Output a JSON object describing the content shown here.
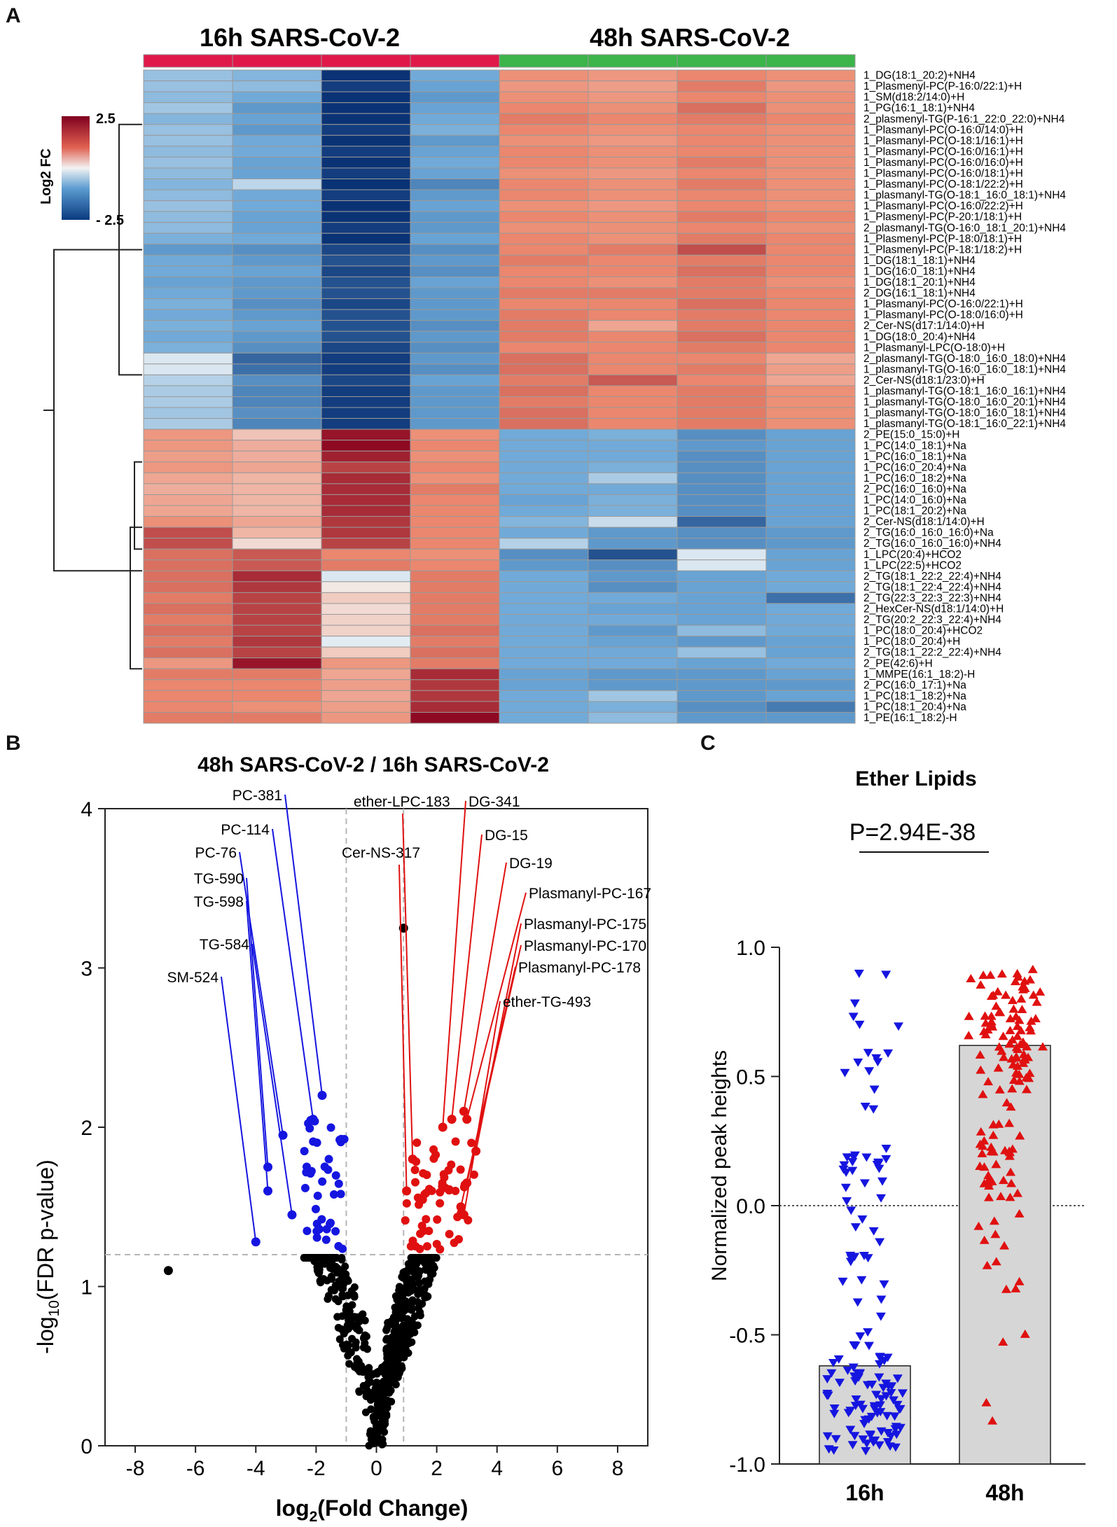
{
  "panels": {
    "a": "A",
    "b": "B",
    "c": "C"
  },
  "heatmap": {
    "group_left": "16h SARS-CoV-2",
    "group_right": "48h SARS-CoV-2",
    "group_left_color": "#e0184a",
    "group_right_color": "#3cb44a",
    "legend_title": "Log2 FC",
    "legend_max": "2.5",
    "legend_min": "- 2.5",
    "rows": [
      "1_DG(18:1_20:2)+NH4",
      "1_Plasmenyl-PC(P-16:0/22:1)+H",
      "1_SM(d18:2/14:0)+H",
      "1_PG(16:1_18:1)+NH4",
      "2_plasmenyl-TG(P-16:1_22:0_22:0)+NH4",
      "1_Plasmanyl-PC(O-16:0/14:0)+H",
      "1_Plasmanyl-PC(O-18:1/16:1)+H",
      "1_Plasmanyl-PC(O-16:0/16:1)+H",
      "1_Plasmanyl-PC(O-16:0/16:0)+H",
      "1_Plasmanyl-PC(O-16:0/18:1)+H",
      "1_Plasmanyl-PC(O-18:1/22:2)+H",
      "1_plasmanyl-TG(O-18:1_16:0_18:1)+NH4",
      "1_Plasmanyl-PC(O-16:0/22:2)+H",
      "1_Plasmenyl-PC(P-20:1/18:1)+H",
      "2_plasmanyl-TG(O-16:0_18:1_20:1)+NH4",
      "1_Plasmenyl-PC(P-18:0/18:1)+H",
      "1_Plasmenyl-PC(P-18:1/18:2)+H",
      "1_DG(18:1_18:1)+NH4",
      "1_DG(16:0_18:1)+NH4",
      "1_DG(18:1_20:1)+NH4",
      "2_DG(16:1_18:1)+NH4",
      "1_Plasmanyl-PC(O-16:0/22:1)+H",
      "1_Plasmanyl-PC(O-18:0/16:0)+H",
      "2_Cer-NS(d17:1/14:0)+H",
      "1_DG(18:0_20:4)+NH4",
      "1_Plasmanyl-LPC(O-18:0)+H",
      "2_plasmanyl-TG(O-18:0_16:0_18:0)+NH4",
      "1_plasmanyl-TG(O-16:0_16:0_18:1)+NH4",
      "2_Cer-NS(d18:1/23:0)+H",
      "1_plasmanyl-TG(O-18:1_16:0_16:1)+NH4",
      "1_plasmanyl-TG(O-18:0_16:0_20:1)+NH4",
      "1_plasmanyl-TG(O-18:0_16:0_18:1)+NH4",
      "1_plasmanyl-TG(O-18:1_16:0_22:1)+NH4",
      "2_PE(15:0_15:0)+H",
      "1_PC(14:0_18:1)+Na",
      "1_PC(16:0_18:1)+Na",
      "1_PC(16:0_20:4)+Na",
      "1_PC(16:0_18:2)+Na",
      "2_PC(16:0_16:0)+Na",
      "1_PC(14:0_16:0)+Na",
      "1_PC(18:1_20:2)+Na",
      "2_Cer-NS(d18:1/14:0)+H",
      "2_TG(16:0_16:0_16:0)+Na",
      "2_TG(16:0_16:0_16:0)+NH4",
      "1_LPC(20:4)+HCO2",
      "1_LPC(22:5)+HCO2",
      "2_TG(18:1_22:2_22:4)+NH4",
      "2_TG(18:1_22:4_22:4)+NH4",
      "2_TG(22:3_22:3_22:3)+NH4",
      "2_HexCer-NS(d18:1/14:0)+H",
      "2_TG(20:2_22:3_22:4)+NH4",
      "1_PC(18:0_20:4)+HCO2",
      "1_PC(18:0_20:4)+H",
      "2_TG(18:1_22:2_22:4)+NH4",
      "2_PE(42:6)+H",
      "1_MMPE(16:1_18:2)-H",
      "2_PC(16:0_17:1)+Na",
      "1_PC(18:1_18:2)+Na",
      "1_PC(18:1_20:4)+Na",
      "1_PE(16:1_18:2)-H"
    ],
    "values": [
      [
        -0.9,
        -1.1,
        -2.5,
        -1.3,
        1.3,
        1.2,
        1.4,
        1.3
      ],
      [
        -0.9,
        -1.0,
        -2.4,
        -1.4,
        1.2,
        1.1,
        1.5,
        1.2
      ],
      [
        -1.0,
        -1.3,
        -2.5,
        -1.5,
        1.3,
        1.2,
        1.4,
        1.3
      ],
      [
        -0.8,
        -1.5,
        -2.5,
        -1.4,
        1.4,
        1.3,
        1.6,
        1.3
      ],
      [
        -1.1,
        -1.4,
        -2.5,
        -1.3,
        1.5,
        1.4,
        1.5,
        1.4
      ],
      [
        -0.9,
        -1.5,
        -2.4,
        -1.2,
        1.4,
        1.3,
        1.4,
        1.3
      ],
      [
        -0.9,
        -1.3,
        -2.5,
        -1.5,
        1.3,
        1.2,
        1.4,
        1.3
      ],
      [
        -1.0,
        -1.3,
        -2.4,
        -1.4,
        1.4,
        1.3,
        1.4,
        1.3
      ],
      [
        -0.9,
        -1.4,
        -2.5,
        -1.3,
        1.4,
        1.3,
        1.5,
        1.3
      ],
      [
        -1.0,
        -1.4,
        -2.4,
        -1.4,
        1.3,
        1.2,
        1.4,
        1.3
      ],
      [
        -1.1,
        -0.5,
        -2.5,
        -1.7,
        1.4,
        1.3,
        1.5,
        1.3
      ],
      [
        -1.0,
        -1.3,
        -2.4,
        -1.5,
        1.4,
        1.3,
        1.4,
        1.3
      ],
      [
        -0.9,
        -1.3,
        -2.5,
        -1.4,
        1.3,
        1.2,
        1.4,
        1.3
      ],
      [
        -1.0,
        -1.4,
        -2.5,
        -1.5,
        1.4,
        1.3,
        1.5,
        1.4
      ],
      [
        -1.0,
        -1.4,
        -2.4,
        -1.5,
        1.3,
        1.3,
        1.4,
        1.3
      ],
      [
        -1.2,
        -1.3,
        -2.5,
        -1.4,
        1.4,
        1.3,
        1.5,
        1.4
      ],
      [
        -1.5,
        -1.6,
        -2.3,
        -1.6,
        1.4,
        1.5,
        1.9,
        1.4
      ],
      [
        -1.3,
        -1.5,
        -2.2,
        -1.5,
        1.5,
        1.4,
        1.5,
        1.4
      ],
      [
        -1.3,
        -1.4,
        -2.3,
        -1.6,
        1.4,
        1.4,
        1.6,
        1.4
      ],
      [
        -1.4,
        -1.5,
        -2.2,
        -1.4,
        1.4,
        1.3,
        1.5,
        1.3
      ],
      [
        -1.3,
        -1.5,
        -2.2,
        -1.5,
        1.5,
        1.5,
        1.5,
        1.4
      ],
      [
        -1.2,
        -1.6,
        -2.3,
        -1.5,
        1.4,
        1.4,
        1.6,
        1.4
      ],
      [
        -1.3,
        -1.5,
        -2.2,
        -1.5,
        1.5,
        1.4,
        1.5,
        1.4
      ],
      [
        -1.2,
        -1.4,
        -2.2,
        -1.6,
        1.5,
        1.0,
        1.5,
        1.4
      ],
      [
        -1.3,
        -1.5,
        -2.2,
        -1.5,
        1.5,
        1.4,
        1.6,
        1.4
      ],
      [
        -1.2,
        -1.6,
        -2.3,
        -1.6,
        1.4,
        1.4,
        1.5,
        1.4
      ],
      [
        -0.2,
        -2.0,
        -2.4,
        -1.5,
        1.6,
        1.4,
        1.4,
        1.0
      ],
      [
        -0.2,
        -1.9,
        -2.4,
        -1.6,
        1.6,
        1.4,
        1.5,
        1.1
      ],
      [
        -0.6,
        -1.6,
        -2.3,
        -1.4,
        1.5,
        1.8,
        1.4,
        1.0
      ],
      [
        -0.7,
        -1.7,
        -2.4,
        -1.5,
        1.6,
        1.4,
        1.5,
        1.3
      ],
      [
        -0.7,
        -1.7,
        -2.4,
        -1.5,
        1.5,
        1.4,
        1.5,
        1.3
      ],
      [
        -0.8,
        -1.6,
        -2.4,
        -1.5,
        1.6,
        1.4,
        1.5,
        1.3
      ],
      [
        -0.7,
        -1.7,
        -2.4,
        -1.5,
        1.6,
        1.4,
        1.5,
        1.3
      ],
      [
        1.2,
        0.6,
        2.4,
        1.3,
        -1.3,
        -1.2,
        -1.6,
        -1.4
      ],
      [
        1.2,
        0.9,
        2.5,
        1.4,
        -1.3,
        -1.3,
        -1.5,
        -1.4
      ],
      [
        1.1,
        0.9,
        2.3,
        1.3,
        -1.3,
        -1.3,
        -1.6,
        -1.4
      ],
      [
        1.2,
        1.0,
        2.0,
        1.4,
        -1.3,
        -1.2,
        -1.6,
        -1.4
      ],
      [
        1.0,
        0.8,
        2.2,
        1.3,
        -1.3,
        -0.7,
        -1.6,
        -1.4
      ],
      [
        0.9,
        0.8,
        2.2,
        1.5,
        -1.3,
        -1.3,
        -1.6,
        -1.4
      ],
      [
        1.0,
        0.8,
        2.2,
        1.4,
        -1.4,
        -1.2,
        -1.6,
        -1.4
      ],
      [
        1.0,
        0.8,
        2.2,
        1.4,
        -1.3,
        -1.2,
        -1.6,
        -1.4
      ],
      [
        1.3,
        1.0,
        2.1,
        1.4,
        -1.1,
        -0.4,
        -2.0,
        -1.4
      ],
      [
        1.9,
        0.8,
        2.1,
        1.4,
        -1.3,
        -1.5,
        -1.6,
        -1.5
      ],
      [
        1.9,
        0.3,
        2.0,
        1.4,
        -0.6,
        -1.5,
        -1.6,
        -1.5
      ],
      [
        1.6,
        1.8,
        1.4,
        1.3,
        -1.6,
        -2.2,
        -0.2,
        -1.4
      ],
      [
        1.6,
        1.8,
        1.5,
        1.4,
        -1.5,
        -1.6,
        -0.2,
        -1.4
      ],
      [
        1.6,
        2.2,
        -0.2,
        1.5,
        -1.3,
        -1.5,
        -1.4,
        -1.3
      ],
      [
        1.6,
        2.1,
        0.1,
        1.5,
        -1.3,
        -1.6,
        -1.4,
        -1.3
      ],
      [
        1.5,
        2.0,
        0.5,
        1.5,
        -1.3,
        -1.3,
        -1.4,
        -1.9
      ],
      [
        1.6,
        2.0,
        0.3,
        1.5,
        -1.3,
        -1.4,
        -1.4,
        -1.3
      ],
      [
        1.5,
        2.0,
        0.4,
        1.5,
        -1.3,
        -1.3,
        -1.4,
        -1.3
      ],
      [
        1.6,
        2.0,
        0.4,
        1.6,
        -1.3,
        -1.5,
        -1.0,
        -1.3
      ],
      [
        1.5,
        2.1,
        -0.1,
        1.5,
        -1.3,
        -1.4,
        -1.5,
        -1.4
      ],
      [
        1.6,
        2.0,
        0.5,
        1.6,
        -1.3,
        -1.3,
        -0.9,
        -1.4
      ],
      [
        1.2,
        2.4,
        1.2,
        1.5,
        -1.3,
        -1.3,
        -1.4,
        -1.3
      ],
      [
        1.5,
        1.5,
        1.0,
        2.2,
        -1.4,
        -1.5,
        -1.5,
        -1.4
      ],
      [
        1.4,
        1.4,
        1.1,
        2.1,
        -1.4,
        -1.5,
        -1.5,
        -1.5
      ],
      [
        1.4,
        1.4,
        1.0,
        2.1,
        -1.3,
        -0.8,
        -1.5,
        -1.4
      ],
      [
        1.4,
        1.3,
        1.1,
        2.2,
        -1.3,
        -1.2,
        -1.6,
        -1.8
      ],
      [
        1.5,
        1.5,
        1.2,
        2.5,
        -1.3,
        -1.0,
        -1.5,
        -1.5
      ]
    ]
  },
  "volcano": {
    "title": "48h SARS-CoV-2 / 16h SARS-CoV-2",
    "xlabel_main": "log",
    "xlabel_sub": "2",
    "xlabel_rest": "(Fold Change)",
    "ylabel_main": "-log",
    "ylabel_sub": "10",
    "ylabel_rest": "(FDR p-value)",
    "xticks": [
      "-8",
      "-6",
      "-4",
      "-2",
      "0",
      "2",
      "4",
      "6",
      "8"
    ],
    "yticks": [
      "0",
      "1",
      "2",
      "3",
      "4"
    ],
    "labels_down": [
      "PC-381",
      "PC-114",
      "PC-76",
      "TG-590",
      "TG-598",
      "TG-584",
      "SM-524"
    ],
    "labels_up": [
      "ether-LPC-183",
      "Cer-NS-317",
      "DG-341",
      "DG-15",
      "DG-19",
      "Plasmanyl-PC-167",
      "Plasmanyl-PC-175",
      "Plasmanyl-PC-170",
      "Plasmanyl-PC-178",
      "ether-TG-493"
    ],
    "down_color": "#1515e0",
    "up_color": "#e01010"
  },
  "chart_data": [
    {
      "type": "heatmap",
      "title": "",
      "columns_groups": [
        "16h SARS-CoV-2",
        "48h SARS-CoV-2"
      ],
      "color_range": [
        -2.5,
        2.5
      ],
      "note": "rows and values listed under heatmap"
    },
    {
      "type": "scatter",
      "title": "48h SARS-CoV-2 / 16h SARS-CoV-2",
      "xlabel": "log2(Fold Change)",
      "ylabel": "-log10(FDR p-value)",
      "xlim": [
        -9,
        9
      ],
      "ylim": [
        0,
        4
      ],
      "thresholds": {
        "x": [
          -1,
          0.9
        ],
        "y": 1.2
      },
      "highlighted_points": [
        {
          "label": "PC-381",
          "x": -1.8,
          "y": 2.2
        },
        {
          "label": "PC-114",
          "x": -2.1,
          "y": 2.05
        },
        {
          "label": "PC-76",
          "x": -3.1,
          "y": 1.95
        },
        {
          "label": "TG-590",
          "x": -3.6,
          "y": 1.75
        },
        {
          "label": "TG-598",
          "x": -3.6,
          "y": 1.6
        },
        {
          "label": "TG-584",
          "x": -2.8,
          "y": 1.45
        },
        {
          "label": "SM-524",
          "x": -4.0,
          "y": 1.28
        },
        {
          "label": "ether-LPC-183",
          "x": 1.2,
          "y": 1.8
        },
        {
          "label": "Cer-NS-317",
          "x": 1.0,
          "y": 1.6
        },
        {
          "label": "DG-341",
          "x": 2.2,
          "y": 2.0
        },
        {
          "label": "DG-15",
          "x": 2.5,
          "y": 2.05
        },
        {
          "label": "DG-19",
          "x": 2.9,
          "y": 2.1
        },
        {
          "label": "Plasmanyl-PC-167",
          "x": 3.0,
          "y": 2.05
        },
        {
          "label": "Plasmanyl-PC-175",
          "x": 3.3,
          "y": 1.85
        },
        {
          "label": "Plasmanyl-PC-170",
          "x": 3.0,
          "y": 1.65
        },
        {
          "label": "Plasmanyl-PC-178",
          "x": 2.8,
          "y": 1.5
        },
        {
          "label": "ether-TG-493",
          "x": 2.9,
          "y": 1.45
        },
        {
          "label": "",
          "x": -6.9,
          "y": 1.1
        },
        {
          "label": "",
          "x": 0.9,
          "y": 3.25
        }
      ]
    },
    {
      "type": "scatter",
      "title": "Ether Lipids",
      "categories": [
        "16h",
        "48h"
      ],
      "ylabel": "Normalized peak heights",
      "ylim": [
        -1.0,
        1.0
      ],
      "yticks": [
        "1.0",
        "0.5",
        "0.0",
        "-0.5",
        "-1.0"
      ],
      "bar_means": [
        -0.62,
        0.62
      ],
      "annotation": "P=2.94E-38",
      "series": [
        {
          "name": "16h",
          "marker": "down-triangle",
          "color": "#1515e0"
        },
        {
          "name": "48h",
          "marker": "up-triangle",
          "color": "#e01010"
        }
      ]
    }
  ]
}
